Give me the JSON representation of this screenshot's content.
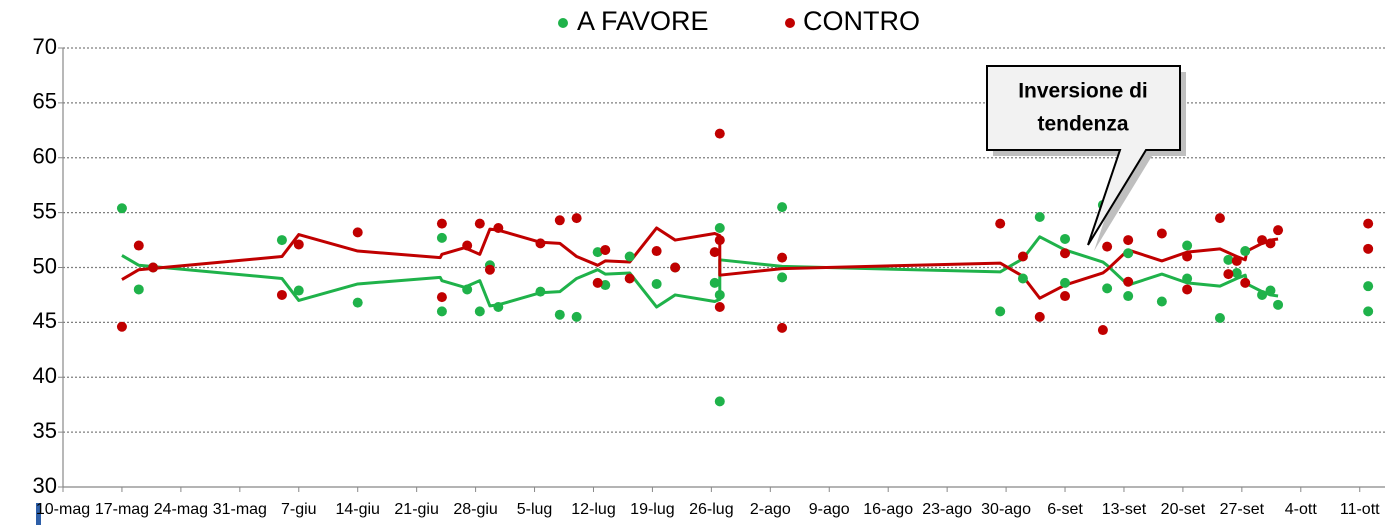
{
  "chart_data": {
    "type": "scatter",
    "legend": "top",
    "grid": true,
    "ylim": [
      30,
      70
    ],
    "yticks": [
      30,
      35,
      40,
      45,
      50,
      55,
      60,
      65,
      70
    ],
    "xlim": [
      0,
      157
    ],
    "xticks": [
      {
        "value": 0,
        "label": "10-mag"
      },
      {
        "value": 7,
        "label": "17-mag"
      },
      {
        "value": 14,
        "label": "24-mag"
      },
      {
        "value": 21,
        "label": "31-mag"
      },
      {
        "value": 28,
        "label": "7-giu"
      },
      {
        "value": 35,
        "label": "14-giu"
      },
      {
        "value": 42,
        "label": "21-giu"
      },
      {
        "value": 49,
        "label": "28-giu"
      },
      {
        "value": 56,
        "label": "5-lug"
      },
      {
        "value": 63,
        "label": "12-lug"
      },
      {
        "value": 70,
        "label": "19-lug"
      },
      {
        "value": 77,
        "label": "26-lug"
      },
      {
        "value": 84,
        "label": "2-ago"
      },
      {
        "value": 91,
        "label": "9-ago"
      },
      {
        "value": 98,
        "label": "16-ago"
      },
      {
        "value": 105,
        "label": "23-ago"
      },
      {
        "value": 112,
        "label": "30-ago"
      },
      {
        "value": 119,
        "label": "6-set"
      },
      {
        "value": 126,
        "label": "13-set"
      },
      {
        "value": 133,
        "label": "20-set"
      },
      {
        "value": 140,
        "label": "27-set"
      },
      {
        "value": 147,
        "label": "4-ott"
      },
      {
        "value": 154,
        "label": "11-ott"
      }
    ],
    "x": [
      7,
      9,
      10.7,
      26,
      28,
      35,
      45,
      45,
      48,
      49.5,
      50.7,
      51.7,
      56.7,
      59,
      61,
      63.5,
      64.4,
      67.3,
      70.5,
      72.7,
      77.4,
      78,
      78,
      78,
      85.4,
      85.4,
      111.3,
      114,
      116,
      119,
      119,
      123.5,
      124,
      126.5,
      126.5,
      130.5,
      133.5,
      133.5,
      137.4,
      138.4,
      139.4,
      140.4,
      142.4,
      143.4,
      144.3,
      155,
      155
    ],
    "series": [
      {
        "name": "A FAVORE",
        "color": "#1fb24a",
        "values": [
          55.4,
          48.0,
          50.0,
          52.5,
          47.9,
          46.8,
          52.7,
          46.0,
          48.0,
          46.0,
          50.2,
          46.4,
          47.8,
          45.7,
          45.5,
          51.4,
          48.4,
          51.0,
          48.5,
          50.0,
          48.6,
          53.6,
          47.5,
          37.8,
          49.1,
          55.5,
          46.0,
          49.0,
          54.6,
          52.6,
          48.6,
          55.7,
          48.1,
          47.4,
          51.3,
          46.9,
          52.0,
          49.0,
          45.4,
          50.7,
          49.5,
          51.5,
          47.5,
          47.9,
          46.6,
          48.3,
          46.0
        ],
        "trend": {
          "x": [
            7,
            9,
            26,
            28,
            35,
            44.8,
            45,
            47.7,
            49.5,
            50.7,
            51.7,
            56.7,
            59,
            61,
            63.5,
            64.4,
            67.3,
            70.5,
            72.7,
            77.4,
            78,
            78,
            85.4,
            111.3,
            114,
            116,
            119,
            123.5,
            124,
            126.5,
            130.5,
            133.5,
            137.4,
            139.4,
            140.4,
            140.6,
            142.4,
            143.4,
            144.3
          ],
          "values": [
            51.1,
            50.2,
            49.0,
            47.0,
            48.5,
            49.1,
            48.8,
            48.2,
            48.8,
            46.5,
            46.6,
            47.7,
            47.8,
            49.0,
            49.8,
            49.4,
            49.5,
            46.4,
            47.5,
            46.9,
            47.1,
            50.7,
            50.1,
            49.6,
            50.8,
            52.8,
            51.6,
            50.5,
            50.2,
            48.4,
            49.4,
            48.6,
            48.3,
            49.0,
            49.3,
            48.5,
            47.8,
            47.5,
            47.4
          ]
        }
      },
      {
        "name": "CONTRO",
        "color": "#c00000",
        "values": [
          44.6,
          52.0,
          50.0,
          47.5,
          52.1,
          53.2,
          47.3,
          54.0,
          52.0,
          54.0,
          49.8,
          53.6,
          52.2,
          54.3,
          54.5,
          48.6,
          51.6,
          49.0,
          51.5,
          50.0,
          51.4,
          46.4,
          52.5,
          62.2,
          50.9,
          44.5,
          54.0,
          51.0,
          45.5,
          47.4,
          51.3,
          44.3,
          51.9,
          52.5,
          48.7,
          53.1,
          48.0,
          51.0,
          54.5,
          49.4,
          50.6,
          48.6,
          52.5,
          52.2,
          53.4,
          51.7,
          54.0
        ],
        "trend": {
          "x": [
            7,
            9,
            26,
            28,
            35,
            44.8,
            45,
            47.7,
            49.5,
            50.7,
            51.7,
            56.7,
            59,
            61,
            63.5,
            64.4,
            67.3,
            70.5,
            72.7,
            77.4,
            78,
            78,
            85.4,
            111.3,
            114,
            116,
            119,
            123.5,
            124,
            126.5,
            130.5,
            133.5,
            137.4,
            139.4,
            140.4,
            140.6,
            142.4,
            143.4,
            144.3
          ],
          "values": [
            48.9,
            49.8,
            51.0,
            53.0,
            51.5,
            50.9,
            51.2,
            51.8,
            51.2,
            53.5,
            53.4,
            52.3,
            52.2,
            51.0,
            50.2,
            50.6,
            50.5,
            53.6,
            52.5,
            53.1,
            52.9,
            49.3,
            49.9,
            50.4,
            49.2,
            47.2,
            48.4,
            49.5,
            49.8,
            51.6,
            50.6,
            51.4,
            51.7,
            51.0,
            50.7,
            51.5,
            52.2,
            52.5,
            52.6
          ]
        }
      }
    ],
    "annotation": {
      "lines": [
        "Inversione di",
        "tendenza"
      ]
    }
  }
}
